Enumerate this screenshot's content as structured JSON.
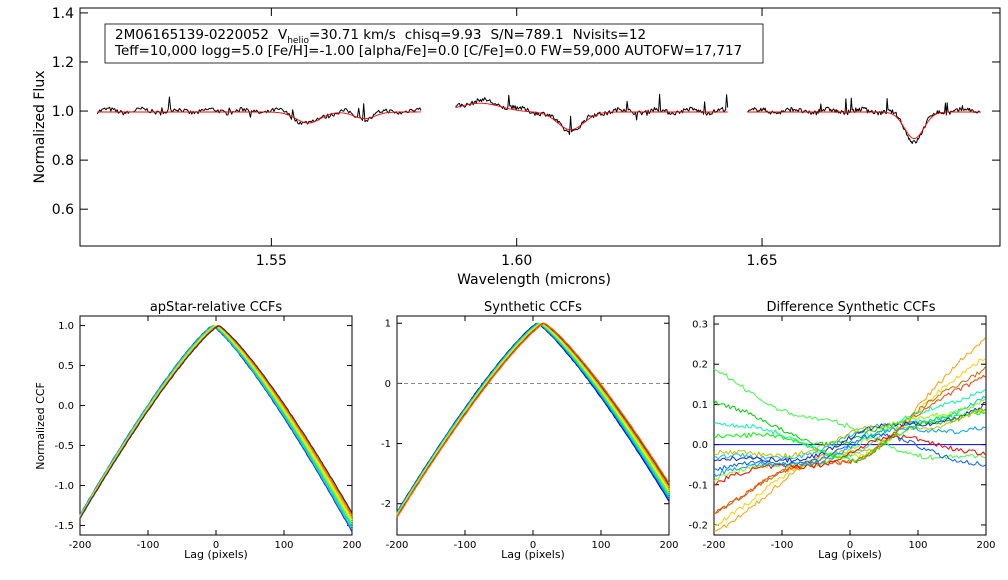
{
  "chart_data": [
    {
      "type": "line",
      "id": "spectrum",
      "title": "",
      "xlabel": "Wavelength (microns)",
      "ylabel": "Normalized Flux",
      "xlim": [
        1.511,
        1.6985
      ],
      "ylim": [
        0.45,
        1.42
      ],
      "x_ticks": [
        1.55,
        1.6,
        1.65
      ],
      "x_tick_labels": [
        "1.55",
        "1.60",
        "1.65"
      ],
      "y_ticks": [
        0.6,
        0.8,
        1.0,
        1.2,
        1.4
      ],
      "y_tick_labels": [
        "0.6",
        "0.8",
        "1.0",
        "1.2",
        "1.4"
      ],
      "legend": {
        "star_id": "2M06165139-0220052",
        "v_prefix": "V",
        "v_sub": "helio",
        "v_value": "=30.71 km/s",
        "chisq": "chisq=9.93",
        "snr": "S/N=789.1",
        "nvisits": "Nvisits=12",
        "line2": "Teff=10,000 logg=5.0 [Fe/H]=-1.00 [alpha/Fe]=0.0 [C/Fe]=0.0 FW=59,000 AUTOFW=17,717"
      },
      "chips": [
        {
          "range": [
            1.5145,
            1.5805
          ]
        },
        {
          "range": [
            1.5875,
            1.643
          ]
        },
        {
          "range": [
            1.647,
            1.6945
          ]
        }
      ],
      "series": [
        {
          "name": "observed",
          "color": "#000000"
        },
        {
          "name": "model",
          "color": "#ff0000"
        }
      ],
      "features": [
        {
          "center": 1.5575,
          "depth": 0.05,
          "width": 0.0035
        },
        {
          "center": 1.569,
          "depth": 0.03,
          "width": 0.003
        },
        {
          "center": 1.5925,
          "depth": -0.04,
          "width": 0.006
        },
        {
          "center": 1.611,
          "depth": 0.08,
          "width": 0.0038
        },
        {
          "center": 1.681,
          "depth": 0.12,
          "width": 0.0028
        }
      ]
    },
    {
      "type": "line",
      "id": "apstar-ccf",
      "title": "apStar-relative CCFs",
      "xlabel": "Lag (pixels)",
      "ylabel": "Normalized CCF",
      "xlim": [
        -200,
        200
      ],
      "ylim": [
        -1.62,
        1.12
      ],
      "x_ticks": [
        -200,
        -100,
        0,
        100,
        200
      ],
      "x_tick_labels": [
        "-200",
        "-100",
        "0",
        "100",
        "200"
      ],
      "y_ticks": [
        -1.5,
        -1.0,
        -0.5,
        0.0,
        0.5,
        1.0
      ],
      "y_tick_labels": [
        "-1.5",
        "-1.0",
        "-0.5",
        "0.0",
        "0.5",
        "1.0"
      ],
      "peak_lag": 0,
      "end_value_left": -1.4,
      "end_value_right": -1.45,
      "series_colors": [
        "#2f2fd0",
        "#00c8ff",
        "#00e0a0",
        "#40ff40",
        "#c0ff00",
        "#ffe000",
        "#ffa000",
        "#ff6000",
        "#303030"
      ]
    },
    {
      "type": "line",
      "id": "synthetic-ccf",
      "title": "Synthetic CCFs",
      "xlabel": "Lag (pixels)",
      "ylabel": "",
      "xlim": [
        -200,
        200
      ],
      "ylim": [
        -2.52,
        1.12
      ],
      "x_ticks": [
        -200,
        -100,
        0,
        100,
        200
      ],
      "x_tick_labels": [
        "-200",
        "-100",
        "0",
        "100",
        "200"
      ],
      "y_ticks": [
        -2,
        -1,
        0,
        1
      ],
      "y_tick_labels": [
        "-2",
        "-1",
        "0",
        "1"
      ],
      "reference_line": 0,
      "peak_lag": 12,
      "end_value_left": -2.2,
      "end_value_right": -1.8,
      "series_colors": [
        "#0000c0",
        "#0080ff",
        "#00d0d0",
        "#00ff80",
        "#80ff00",
        "#ffff00",
        "#ffc000",
        "#ff8000",
        "#404040",
        "#ff6000"
      ]
    },
    {
      "type": "line",
      "id": "difference-ccf",
      "title": "Difference Synthetic CCFs",
      "xlabel": "Lag (pixels)",
      "ylabel": "",
      "xlim": [
        -200,
        200
      ],
      "ylim": [
        -0.225,
        0.32
      ],
      "x_ticks": [
        -200,
        -100,
        0,
        100,
        200
      ],
      "x_tick_labels": [
        "-200",
        "-100",
        "0",
        "100",
        "200"
      ],
      "y_ticks": [
        -0.2,
        -0.1,
        0.0,
        0.1,
        0.2,
        0.3
      ],
      "y_tick_labels": [
        "-0.2",
        "-0.1",
        "0.0",
        "0.1",
        "0.2",
        "0.3"
      ],
      "zero_line_color": "#0000ff",
      "series": [
        {
          "color": "#ffa000",
          "left": -0.21,
          "right": 0.28
        },
        {
          "color": "#ffd000",
          "left": -0.19,
          "right": 0.23
        },
        {
          "color": "#c07000",
          "left": -0.16,
          "right": 0.2
        },
        {
          "color": "#ff4000",
          "left": -0.16,
          "right": 0.18
        },
        {
          "color": "#40ff40",
          "left": 0.18,
          "right": -0.03
        },
        {
          "color": "#00d000",
          "left": 0.1,
          "right": 0.1
        },
        {
          "color": "#00ffa0",
          "left": 0.05,
          "right": 0.15
        },
        {
          "color": "#00c0ff",
          "left": -0.03,
          "right": 0.13
        },
        {
          "color": "#0060ff",
          "left": -0.06,
          "right": -0.05
        },
        {
          "color": "#2020c0",
          "left": -0.04,
          "right": 0.11
        },
        {
          "color": "#80ff00",
          "left": -0.08,
          "right": 0.12
        },
        {
          "color": "#ff0000",
          "left": -0.09,
          "right": -0.02
        },
        {
          "color": "#00ff00",
          "left": 0.02,
          "right": 0.09
        },
        {
          "color": "#c0c000",
          "left": -0.02,
          "right": 0.1
        },
        {
          "color": "#00a0ff",
          "left": -0.07,
          "right": 0.05
        }
      ]
    }
  ]
}
